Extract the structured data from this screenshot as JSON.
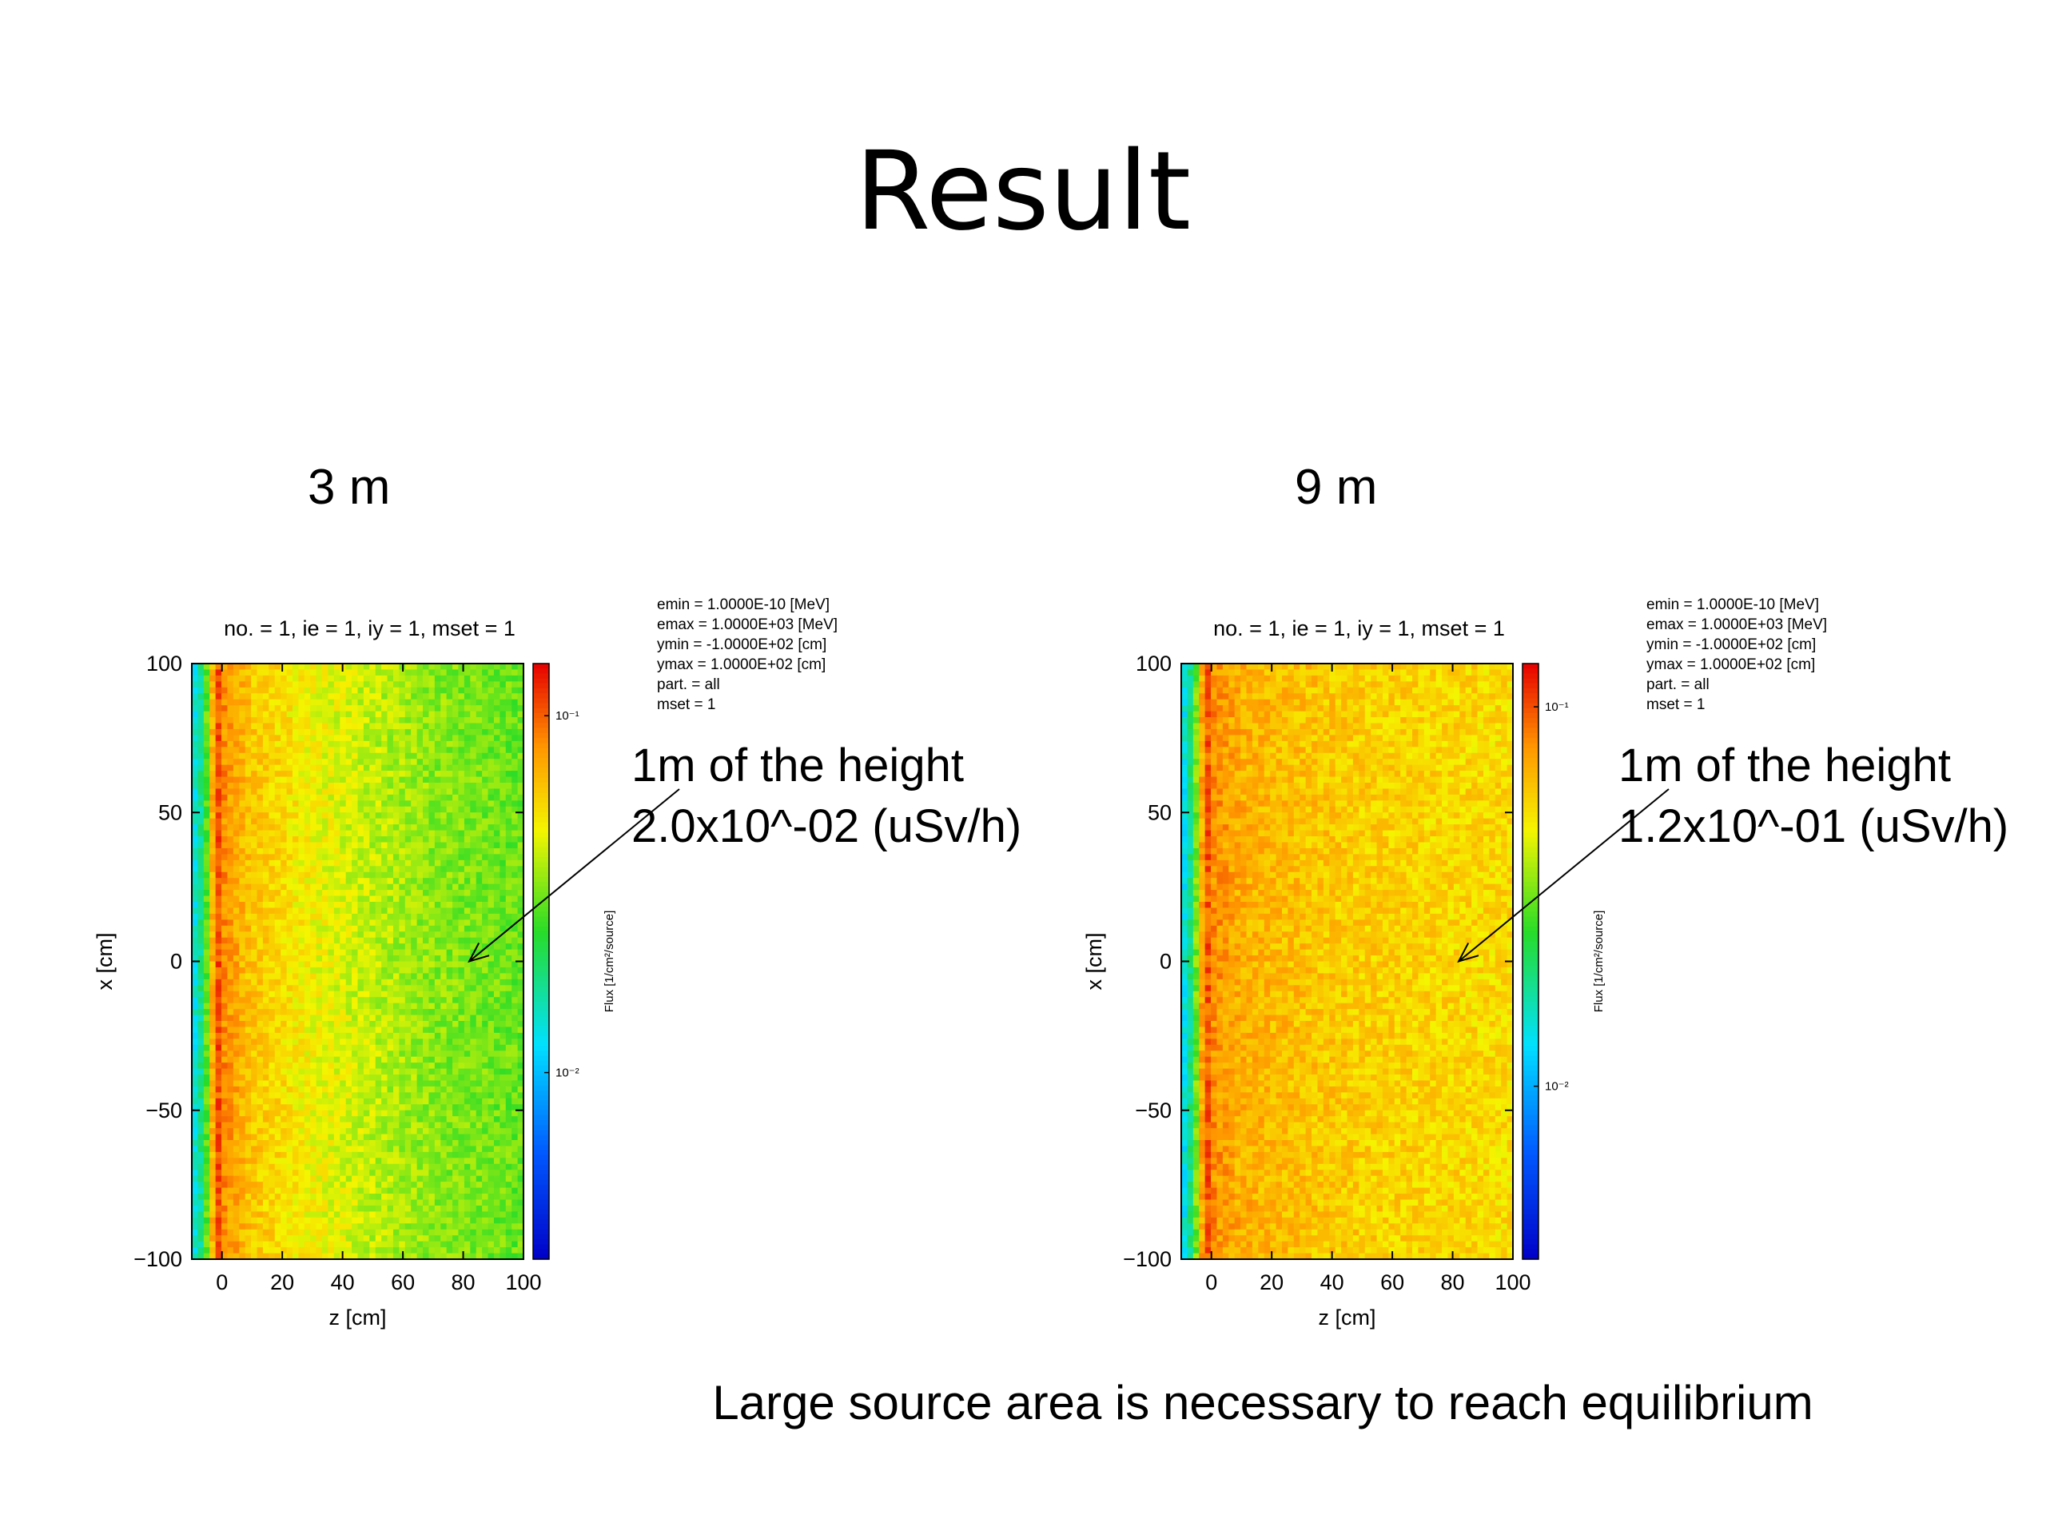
{
  "slide": {
    "title": "Result",
    "footer": "Large source area is necessary to reach equilibrium"
  },
  "panels": [
    {
      "label": "3 m",
      "annotation_line1": "1m of the height",
      "annotation_line2": "2.0x10^-02 (uSv/h)",
      "header": "no. =  1,  ie =  1,  iy =  1,  mset =  1",
      "params": [
        "emin  =   1.0000E-10 [MeV]",
        "emax  =   1.0000E+03 [MeV]",
        "ymin  =  -1.0000E+02 [cm]",
        "ymax  =   1.0000E+02 [cm]",
        "part.  = all",
        "mset  =   1"
      ]
    },
    {
      "label": "9 m",
      "annotation_line1": "1m of the height",
      "annotation_line2": "1.2x10^-01 (uSv/h)",
      "header": "no. =  1,  ie =  1,  iy =  1,  mset =  1",
      "params": [
        "emin  =   1.0000E-10 [MeV]",
        "emax  =   1.0000E+03 [MeV]",
        "ymin  =  -1.0000E+02 [cm]",
        "ymax  =   1.0000E+02 [cm]",
        "part.  = all",
        "mset  =   1"
      ]
    }
  ],
  "chart_data": [
    {
      "type": "heatmap",
      "title": "no. =  1,  ie =  1,  iy =  1,  mset =  1",
      "xlabel": "z [cm]",
      "ylabel": "x [cm]",
      "xlim": [
        -10,
        100
      ],
      "ylim": [
        -100,
        100
      ],
      "x_ticks": [
        0,
        20,
        40,
        60,
        80,
        100
      ],
      "y_ticks": [
        100,
        50,
        0,
        -50,
        -100
      ],
      "x_tick_labels": [
        "0",
        "20",
        "40",
        "60",
        "80",
        "100"
      ],
      "y_tick_labels": [
        "100",
        "50",
        "0",
        "−50",
        "−100"
      ],
      "colorbar_label": "Flux [1/cm²/source]",
      "colorbar_scale": "log",
      "colorbar_ticks": [
        {
          "value": 0.1,
          "label": "10⁻¹"
        },
        {
          "value": 0.01,
          "label": "10⁻²"
        }
      ],
      "colorbar_range": [
        0.003,
        0.14
      ],
      "z_profile": [
        {
          "z": -10,
          "flux": 0.012
        },
        {
          "z": -6,
          "flux": 0.02
        },
        {
          "z": -4,
          "flux": 0.045
        },
        {
          "z": -2,
          "flux": 0.12
        },
        {
          "z": 0,
          "flux": 0.085
        },
        {
          "z": 10,
          "flux": 0.062
        },
        {
          "z": 30,
          "flux": 0.048
        },
        {
          "z": 50,
          "flux": 0.04
        },
        {
          "z": 70,
          "flux": 0.034
        },
        {
          "z": 100,
          "flux": 0.03
        }
      ],
      "annotation": {
        "text": "1m of the height 2.0x10^-02 (uSv/h)",
        "arrow_to": [
          82,
          0
        ]
      }
    },
    {
      "type": "heatmap",
      "title": "no. =  1,  ie =  1,  iy =  1,  mset =  1",
      "xlabel": "z [cm]",
      "ylabel": "x [cm]",
      "xlim": [
        -10,
        100
      ],
      "ylim": [
        -100,
        100
      ],
      "x_ticks": [
        0,
        20,
        40,
        60,
        80,
        100
      ],
      "y_ticks": [
        100,
        50,
        0,
        -50,
        -100
      ],
      "x_tick_labels": [
        "0",
        "20",
        "40",
        "60",
        "80",
        "100"
      ],
      "y_tick_labels": [
        "100",
        "50",
        "0",
        "−50",
        "−100"
      ],
      "colorbar_label": "Flux [1/cm²/source]",
      "colorbar_scale": "log",
      "colorbar_ticks": [
        {
          "value": 0.1,
          "label": "10⁻¹"
        },
        {
          "value": 0.01,
          "label": "10⁻²"
        }
      ],
      "colorbar_range": [
        0.0035,
        0.13
      ],
      "z_profile": [
        {
          "z": -10,
          "flux": 0.012
        },
        {
          "z": -6,
          "flux": 0.022
        },
        {
          "z": -4,
          "flux": 0.05
        },
        {
          "z": -2,
          "flux": 0.11
        },
        {
          "z": 0,
          "flux": 0.08
        },
        {
          "z": 10,
          "flux": 0.068
        },
        {
          "z": 30,
          "flux": 0.062
        },
        {
          "z": 50,
          "flux": 0.058
        },
        {
          "z": 70,
          "flux": 0.056
        },
        {
          "z": 100,
          "flux": 0.054
        }
      ],
      "annotation": {
        "text": "1m of the height 1.2x10^-01 (uSv/h)",
        "arrow_to": [
          82,
          0
        ]
      }
    }
  ]
}
